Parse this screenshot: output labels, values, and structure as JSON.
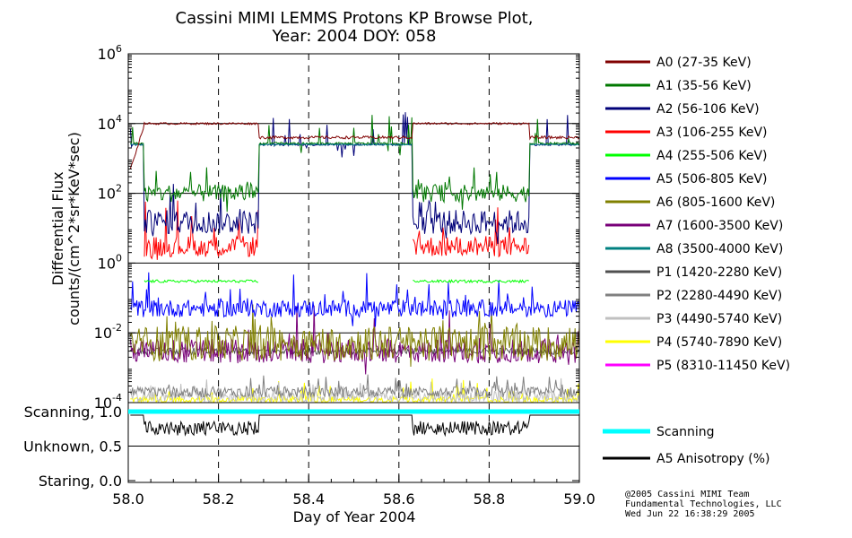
{
  "chart_data": {
    "type": "line",
    "title": "Cassini MIMI LEMMS Protons KP Browse Plot,",
    "subtitle": "Year: 2004 DOY: 058",
    "xlabel": "Day of Year 2004",
    "ylabel_line1": "Differential Flux",
    "ylabel_line2": "counts/(cm^2*sr*KeV*sec)",
    "x_range": [
      58.0,
      59.0
    ],
    "x_ticks": [
      "58.0",
      "58.2",
      "58.4",
      "58.6",
      "58.8",
      "59.0"
    ],
    "x_tick_values": [
      58.0,
      58.2,
      58.4,
      58.6,
      58.8,
      59.0
    ],
    "y_scale": "log",
    "y_range_exponent": [
      -4,
      6
    ],
    "y_tick_exponents": [
      -4,
      -2,
      0,
      2,
      4,
      6
    ],
    "y_tick_labels": [
      "10",
      "10",
      "10",
      "10",
      "10",
      "10"
    ],
    "y_tick_superscripts": [
      "-4",
      "-2",
      "0",
      "2",
      "4",
      "6"
    ],
    "gridlines": "horizontal at each decade; vertical dashed at 58.2, 58.4, 58.6, 58.8",
    "scanning_panel": {
      "labels": [
        "Scanning, 1.0",
        "Unknown, 0.5",
        "Staring, 0.0"
      ],
      "scanning_value": 1.0
    },
    "series": [
      {
        "name": "A0 (27-35 KeV)",
        "color": "#800000",
        "level_high": 10000,
        "level_low": 4000
      },
      {
        "name": "A1 (35-56 KeV)",
        "color": "#007800",
        "level_high": 100,
        "level_low": 2700
      },
      {
        "name": "A2 (56-106 KeV)",
        "color": "#000078",
        "level_high": 15,
        "level_low": 2500
      },
      {
        "name": "A3 (106-255 KeV)",
        "color": "#ff0000",
        "level_high": 3,
        "level_low": null
      },
      {
        "name": "A4 (255-506 KeV)",
        "color": "#00ff00",
        "level_high": 0.3,
        "level_low": null
      },
      {
        "name": "A5 (506-805 KeV)",
        "color": "#0000ff",
        "level_high": 0.05,
        "level_low": 0.05
      },
      {
        "name": "A6 (805-1600 KeV)",
        "color": "#808000",
        "level_high": 0.005,
        "level_low": 0.005
      },
      {
        "name": "A7 (1600-3500 KeV)",
        "color": "#780078",
        "level_high": 0.003,
        "level_low": 0.003
      },
      {
        "name": "A8 (3500-4000 KeV)",
        "color": "#008080",
        "level_high": null,
        "level_low": 2500
      },
      {
        "name": "P1 (1420-2280 KeV)",
        "color": "#505050",
        "level_high": 0.003,
        "level_low": 0.003
      },
      {
        "name": "P2 (2280-4490 KeV)",
        "color": "#808080",
        "level_high": 0.0002,
        "level_low": 0.0002
      },
      {
        "name": "P3 (4490-5740 KeV)",
        "color": "#c0c0c0",
        "level_high": 0.00015,
        "level_low": 0.00015
      },
      {
        "name": "P4 (5740-7890 KeV)",
        "color": "#ffff00",
        "level_high": 0.00012,
        "level_low": 0.00012
      },
      {
        "name": "P5 (8310-11450 KeV)",
        "color": "#ff00ff",
        "level_high": null,
        "level_low": null
      }
    ],
    "high_flux_intervals": [
      [
        58.035,
        58.29
      ],
      [
        58.63,
        58.89
      ]
    ],
    "extra_legend": [
      {
        "name": "Scanning",
        "color": "#00ffff"
      },
      {
        "name": "A5 Anisotropy (%)",
        "color": "#000000"
      }
    ]
  },
  "credits": {
    "line1": "@2005 Cassini MIMI Team",
    "line2": "Fundamental Technologies, LLC",
    "line3": "Wed Jun 22 16:38:29 2005"
  }
}
